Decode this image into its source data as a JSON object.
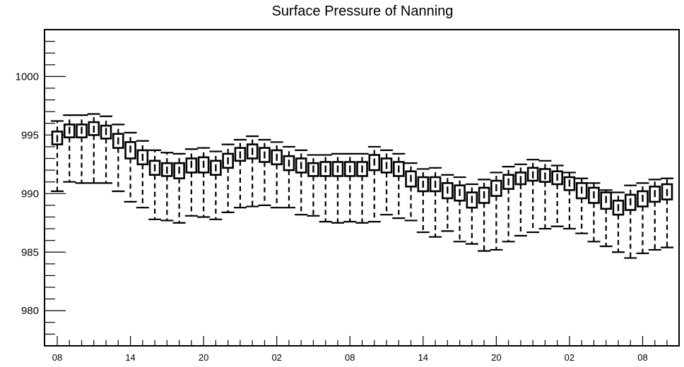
{
  "chart_data": {
    "type": "boxplot",
    "title": "Surface Pressure of Nanning",
    "xlabel": "",
    "ylabel": "",
    "ylim": [
      977,
      1004
    ],
    "yticks": [
      980,
      985,
      990,
      995,
      1000
    ],
    "ytick_labels": [
      "980",
      "985",
      "990",
      "995",
      "1000"
    ],
    "xtick_labels": [
      "08",
      "14",
      "20",
      "02",
      "08",
      "14",
      "20",
      "02",
      "08"
    ],
    "x_step_hours": 1,
    "grid": false,
    "series": [
      {
        "lower": [
          990.2,
          991.0,
          990.9,
          990.9,
          990.9,
          990.2,
          989.3,
          988.8,
          987.8,
          987.7,
          987.5,
          988.1,
          988.0,
          987.8,
          988.4,
          988.8,
          988.9,
          989.0,
          988.8,
          988.8,
          988.2,
          988.1,
          987.6,
          987.5,
          987.6,
          987.5,
          987.6,
          988.2,
          987.9,
          987.7,
          986.7,
          986.3,
          986.8,
          985.9,
          985.7,
          985.1,
          985.2,
          985.9,
          986.4,
          986.7,
          987.0,
          987.2,
          987.0,
          986.6,
          985.9,
          985.5,
          985.0,
          984.5,
          984.9,
          985.2,
          985.4
        ],
        "q1": [
          994.2,
          994.8,
          994.8,
          995.0,
          994.7,
          993.9,
          993.0,
          992.5,
          991.6,
          991.5,
          991.3,
          991.8,
          991.8,
          991.6,
          992.2,
          992.8,
          993.0,
          992.7,
          992.5,
          992.0,
          991.8,
          991.5,
          991.5,
          991.5,
          991.5,
          991.5,
          992.0,
          991.8,
          991.5,
          990.6,
          990.2,
          990.2,
          989.6,
          989.4,
          988.8,
          989.2,
          989.8,
          990.4,
          990.8,
          991.1,
          991.0,
          990.8,
          990.3,
          989.6,
          989.2,
          988.7,
          988.2,
          988.6,
          988.9,
          989.3,
          989.5
        ],
        "median": [
          994.7,
          995.4,
          995.4,
          995.5,
          995.3,
          994.5,
          993.8,
          993.1,
          992.2,
          992.0,
          992.0,
          992.5,
          992.5,
          992.2,
          992.8,
          993.3,
          993.6,
          993.3,
          993.1,
          992.6,
          992.4,
          992.1,
          992.1,
          992.1,
          992.1,
          992.1,
          992.7,
          992.4,
          992.1,
          991.3,
          990.8,
          990.8,
          990.3,
          990.1,
          989.5,
          989.9,
          990.5,
          991.0,
          991.2,
          991.6,
          991.5,
          991.4,
          990.9,
          990.3,
          989.9,
          989.5,
          988.8,
          989.3,
          989.6,
          990.0,
          990.1
        ],
        "q3": [
          995.3,
          995.9,
          995.9,
          996.1,
          995.8,
          995.1,
          994.4,
          993.7,
          992.8,
          992.6,
          992.6,
          993.0,
          993.1,
          992.8,
          993.4,
          993.9,
          994.2,
          993.9,
          993.7,
          993.2,
          993.0,
          992.6,
          992.7,
          992.7,
          992.7,
          992.7,
          993.3,
          993.0,
          992.7,
          991.9,
          991.4,
          991.4,
          990.9,
          990.7,
          990.1,
          990.5,
          991.1,
          991.6,
          991.8,
          992.2,
          992.1,
          991.9,
          991.4,
          990.9,
          990.5,
          990.1,
          989.4,
          989.9,
          990.2,
          990.6,
          990.8
        ],
        "upper": [
          996.2,
          996.7,
          996.7,
          996.8,
          996.6,
          995.9,
          995.2,
          994.5,
          993.7,
          993.5,
          993.4,
          993.8,
          993.9,
          993.6,
          994.2,
          994.6,
          994.9,
          994.6,
          994.4,
          994.0,
          993.7,
          993.3,
          993.3,
          993.4,
          993.4,
          993.4,
          994.0,
          993.7,
          993.4,
          992.6,
          992.1,
          992.2,
          991.6,
          991.4,
          990.8,
          991.2,
          991.8,
          992.3,
          992.5,
          992.9,
          992.8,
          992.4,
          991.8,
          991.3,
          990.9,
          990.3,
          990.1,
          990.7,
          990.9,
          991.2,
          991.3
        ]
      }
    ]
  }
}
